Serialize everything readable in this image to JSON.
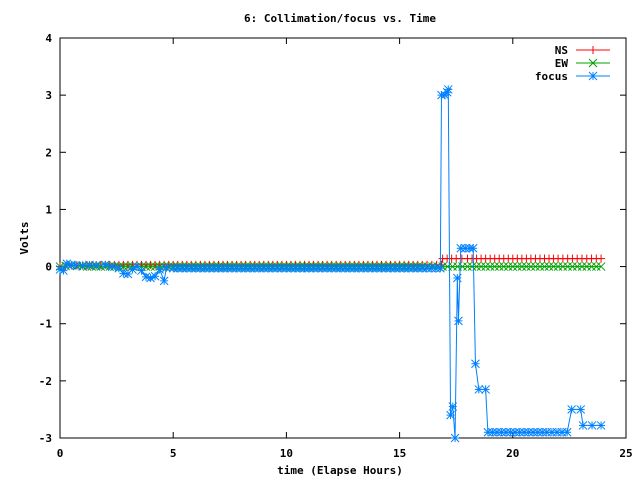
{
  "chart_data": {
    "type": "line",
    "title": "6: Collimation/focus vs. Time",
    "xlabel": "time (Elapse Hours)",
    "ylabel": "Volts",
    "xlim": [
      0,
      25
    ],
    "ylim": [
      -3,
      4
    ],
    "xticks": [
      0,
      5,
      10,
      15,
      20,
      25
    ],
    "yticks": [
      -3,
      -2,
      -1,
      0,
      1,
      2,
      3,
      4
    ],
    "grid": false,
    "legend_position": "top-right",
    "series": [
      {
        "name": "NS",
        "color": "#ff0000",
        "marker": "plus",
        "points": [
          [
            0,
            0
          ],
          [
            0.5,
            0.02
          ],
          [
            1,
            0.02
          ],
          [
            2,
            0.03
          ],
          [
            3,
            0.03
          ],
          [
            4,
            0.03
          ],
          [
            5,
            0.03
          ],
          [
            8,
            0.03
          ],
          [
            12,
            0.03
          ],
          [
            16,
            0.03
          ],
          [
            16.85,
            0.03
          ],
          [
            16.9,
            0.14
          ],
          [
            17.5,
            0.14
          ],
          [
            18,
            0.14
          ],
          [
            20,
            0.14
          ],
          [
            22,
            0.14
          ],
          [
            23.9,
            0.14
          ]
        ]
      },
      {
        "name": "EW",
        "color": "#00a000",
        "marker": "x",
        "points": [
          [
            0,
            0
          ],
          [
            0.5,
            0.02
          ],
          [
            1,
            0
          ],
          [
            2,
            0
          ],
          [
            3,
            0
          ],
          [
            4,
            0
          ],
          [
            5,
            0
          ],
          [
            8,
            0
          ],
          [
            12,
            0
          ],
          [
            16,
            0
          ],
          [
            16.9,
            0
          ],
          [
            18,
            0
          ],
          [
            20,
            0
          ],
          [
            22,
            0
          ],
          [
            23.9,
            0
          ]
        ]
      },
      {
        "name": "focus",
        "color": "#0080ff",
        "marker": "star",
        "points": [
          [
            0,
            -0.05
          ],
          [
            0.15,
            -0.07
          ],
          [
            0.3,
            0.05
          ],
          [
            0.5,
            0.03
          ],
          [
            0.7,
            0.02
          ],
          [
            1.0,
            0.02
          ],
          [
            1.3,
            0.03
          ],
          [
            1.6,
            0.02
          ],
          [
            2.0,
            0.03
          ],
          [
            2.3,
            0
          ],
          [
            2.6,
            -0.03
          ],
          [
            2.8,
            -0.12
          ],
          [
            3.0,
            -0.13
          ],
          [
            3.2,
            -0.05
          ],
          [
            3.4,
            0
          ],
          [
            3.6,
            -0.07
          ],
          [
            3.8,
            -0.18
          ],
          [
            4.0,
            -0.2
          ],
          [
            4.2,
            -0.17
          ],
          [
            4.4,
            -0.05
          ],
          [
            4.6,
            -0.25
          ],
          [
            4.7,
            -0.02
          ],
          [
            5.0,
            -0.03
          ],
          [
            6,
            -0.03
          ],
          [
            8,
            -0.03
          ],
          [
            10,
            -0.03
          ],
          [
            12,
            -0.03
          ],
          [
            14,
            -0.03
          ],
          [
            16,
            -0.03
          ],
          [
            16.8,
            -0.03
          ],
          [
            16.85,
            3.0
          ],
          [
            17.0,
            3.0
          ],
          [
            17.1,
            3.05
          ],
          [
            17.15,
            3.1
          ],
          [
            17.25,
            -2.6
          ],
          [
            17.35,
            -2.45
          ],
          [
            17.45,
            -3.0
          ],
          [
            17.55,
            -0.2
          ],
          [
            17.6,
            -0.95
          ],
          [
            17.7,
            0.32
          ],
          [
            17.9,
            0.32
          ],
          [
            18.1,
            0.32
          ],
          [
            18.25,
            0.32
          ],
          [
            18.35,
            -1.7
          ],
          [
            18.5,
            -2.15
          ],
          [
            18.8,
            -2.15
          ],
          [
            18.9,
            -2.9
          ],
          [
            19.5,
            -2.9
          ],
          [
            20.5,
            -2.9
          ],
          [
            21.5,
            -2.9
          ],
          [
            22.4,
            -2.9
          ],
          [
            22.6,
            -2.5
          ],
          [
            23.0,
            -2.5
          ],
          [
            23.1,
            -2.78
          ],
          [
            23.5,
            -2.78
          ],
          [
            23.9,
            -2.78
          ]
        ]
      }
    ]
  }
}
